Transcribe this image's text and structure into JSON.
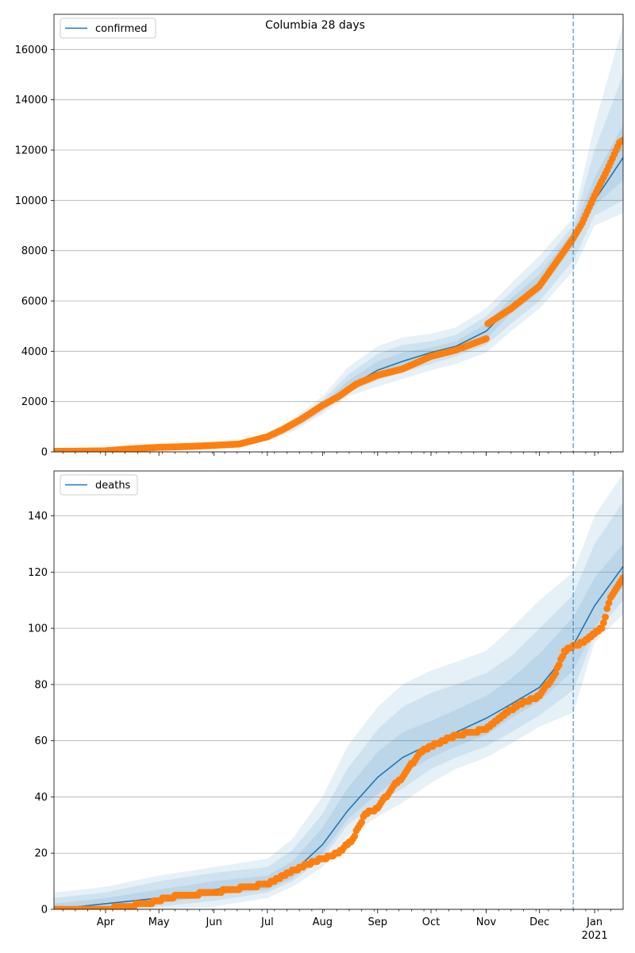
{
  "title": "Columbia 28 days",
  "colors": {
    "model_line": "#1f77b4",
    "observed": "#ff7f0e",
    "band": "#1f77b4",
    "today_line": "#1f77b4",
    "grid": "#b0b0b0"
  },
  "x_axis": {
    "tick_labels": [
      {
        "date": "2020-04-01",
        "label": "Apr"
      },
      {
        "date": "2020-05-01",
        "label": "May"
      },
      {
        "date": "2020-06-01",
        "label": "Jun"
      },
      {
        "date": "2020-07-01",
        "label": "Jul"
      },
      {
        "date": "2020-08-01",
        "label": "Aug"
      },
      {
        "date": "2020-09-01",
        "label": "Sep"
      },
      {
        "date": "2020-10-01",
        "label": "Oct"
      },
      {
        "date": "2020-11-01",
        "label": "Nov"
      },
      {
        "date": "2020-12-01",
        "label": "Dec"
      },
      {
        "date": "2021-01-01",
        "label": "Jan",
        "sublabel": "2021"
      }
    ]
  },
  "chart_data": [
    {
      "type": "line",
      "legend": "confirmed",
      "legend_position": "top-left",
      "grid": "horizontal",
      "xlim": [
        "2020-03-03",
        "2021-01-17"
      ],
      "ylim": [
        0,
        17400
      ],
      "yticks": [
        0,
        2000,
        4000,
        6000,
        8000,
        10000,
        12000,
        14000,
        16000
      ],
      "forecast_start": "2020-12-20",
      "model": {
        "dates": [
          "2020-03-03",
          "2020-04-01",
          "2020-05-01",
          "2020-06-01",
          "2020-06-20",
          "2020-07-01",
          "2020-07-15",
          "2020-08-01",
          "2020-08-15",
          "2020-09-01",
          "2020-09-15",
          "2020-10-01",
          "2020-10-15",
          "2020-11-01",
          "2020-11-15",
          "2020-12-01",
          "2020-12-20",
          "2021-01-01",
          "2021-01-17"
        ],
        "values": [
          20,
          60,
          150,
          250,
          350,
          600,
          1050,
          1800,
          2550,
          3250,
          3600,
          3950,
          4200,
          4800,
          5800,
          6700,
          8500,
          10000,
          11700
        ]
      },
      "bands": [
        {
          "upper": [
            40,
            100,
            200,
            330,
            450,
            750,
            1300,
            2200,
            3350,
            4200,
            4550,
            4700,
            4950,
            5700,
            6700,
            7800,
            9300,
            13000,
            17000
          ],
          "lower": [
            0,
            20,
            100,
            170,
            250,
            450,
            800,
            1500,
            2200,
            2600,
            2900,
            3250,
            3500,
            3950,
            4800,
            5700,
            7200,
            9000,
            9500
          ]
        },
        {
          "upper": [
            30,
            85,
            180,
            300,
            420,
            700,
            1200,
            2050,
            3050,
            3900,
            4250,
            4400,
            4650,
            5400,
            6350,
            7400,
            9000,
            12000,
            15000
          ],
          "lower": [
            5,
            35,
            120,
            190,
            280,
            500,
            880,
            1600,
            2350,
            2850,
            3150,
            3500,
            3800,
            4250,
            5100,
            6000,
            7600,
            9400,
            10000
          ]
        },
        {
          "upper": [
            25,
            75,
            165,
            280,
            390,
            650,
            1130,
            1920,
            2800,
            3600,
            3950,
            4150,
            4400,
            5100,
            6100,
            7050,
            8800,
            10900,
            13000
          ],
          "lower": [
            10,
            45,
            135,
            215,
            310,
            550,
            970,
            1700,
            2450,
            3000,
            3350,
            3750,
            4000,
            4500,
            5500,
            6350,
            8200,
            9800,
            10800
          ]
        }
      ],
      "observed": {
        "dates": [
          "2020-03-03",
          "2020-03-31",
          "2020-04-15",
          "2020-05-01",
          "2020-05-20",
          "2020-06-01",
          "2020-06-15",
          "2020-07-01",
          "2020-07-10",
          "2020-07-20",
          "2020-08-01",
          "2020-08-10",
          "2020-08-20",
          "2020-09-01",
          "2020-09-15",
          "2020-10-01",
          "2020-10-15",
          "2020-11-01",
          "2020-11-02",
          "2020-11-15",
          "2020-12-01",
          "2020-12-10",
          "2020-12-20",
          "2020-12-25",
          "2021-01-01",
          "2021-01-08",
          "2021-01-15",
          "2021-01-17"
        ],
        "values": [
          20,
          40,
          120,
          180,
          220,
          260,
          310,
          600,
          900,
          1300,
          1850,
          2200,
          2700,
          3050,
          3300,
          3800,
          4050,
          4500,
          5100,
          5700,
          6600,
          7500,
          8500,
          9100,
          10200,
          11200,
          12300,
          12400
        ]
      }
    },
    {
      "type": "line",
      "legend": "deaths",
      "legend_position": "top-left",
      "grid": "horizontal",
      "xlim": [
        "2020-03-03",
        "2021-01-17"
      ],
      "ylim": [
        0,
        156
      ],
      "yticks": [
        0,
        20,
        40,
        60,
        80,
        100,
        120,
        140
      ],
      "forecast_start": "2020-12-20",
      "model": {
        "dates": [
          "2020-03-03",
          "2020-04-01",
          "2020-05-01",
          "2020-06-01",
          "2020-07-01",
          "2020-07-15",
          "2020-08-01",
          "2020-08-15",
          "2020-09-01",
          "2020-09-15",
          "2020-10-01",
          "2020-10-15",
          "2020-11-01",
          "2020-11-15",
          "2020-12-01",
          "2020-12-20",
          "2021-01-01",
          "2021-01-17"
        ],
        "values": [
          0,
          2,
          4,
          7,
          9,
          13,
          23,
          35,
          47,
          54,
          59,
          63,
          68,
          73,
          79,
          94,
          108,
          122
        ]
      },
      "bands": [
        {
          "upper": [
            6,
            8,
            12,
            15,
            18,
            25,
            40,
            58,
            72,
            80,
            85,
            88,
            92,
            100,
            110,
            120,
            140,
            155
          ],
          "lower": [
            0,
            0,
            0,
            1,
            4,
            8,
            15,
            26,
            33,
            38,
            45,
            50,
            54,
            59,
            65,
            70,
            95,
            105
          ]
        },
        {
          "upper": [
            4,
            6,
            10,
            13,
            15,
            21,
            34,
            50,
            64,
            72,
            77,
            80,
            84,
            90,
            100,
            112,
            130,
            145
          ],
          "lower": [
            0,
            0,
            1,
            3,
            6,
            10,
            18,
            30,
            38,
            43,
            50,
            54,
            58,
            63,
            69,
            78,
            98,
            110
          ]
        },
        {
          "upper": [
            2,
            4,
            7,
            10,
            12,
            17,
            29,
            43,
            56,
            63,
            67,
            71,
            76,
            82,
            91,
            104,
            118,
            130
          ],
          "lower": [
            0,
            0,
            2,
            5,
            7,
            11,
            20,
            32,
            41,
            48,
            54,
            58,
            62,
            68,
            74,
            85,
            100,
            115
          ]
        }
      ],
      "observed": {
        "dates": [
          "2020-03-03",
          "2020-04-01",
          "2020-04-10",
          "2020-04-25",
          "2020-05-05",
          "2020-05-15",
          "2020-06-01",
          "2020-06-10",
          "2020-07-01",
          "2020-07-10",
          "2020-07-20",
          "2020-08-01",
          "2020-08-10",
          "2020-08-18",
          "2020-08-25",
          "2020-09-01",
          "2020-09-10",
          "2020-09-15",
          "2020-09-25",
          "2020-10-01",
          "2020-10-15",
          "2020-11-01",
          "2020-11-10",
          "2020-11-20",
          "2020-12-01",
          "2020-12-10",
          "2020-12-15",
          "2020-12-25",
          "2021-01-01",
          "2021-01-05",
          "2021-01-10",
          "2021-01-17"
        ],
        "values": [
          0,
          0,
          1,
          2,
          4,
          5,
          6,
          7,
          9,
          12,
          15,
          18,
          20,
          25,
          34,
          36,
          44,
          47,
          56,
          58,
          62,
          64,
          69,
          73,
          76,
          84,
          92,
          95,
          98,
          100,
          111,
          118
        ]
      }
    }
  ]
}
